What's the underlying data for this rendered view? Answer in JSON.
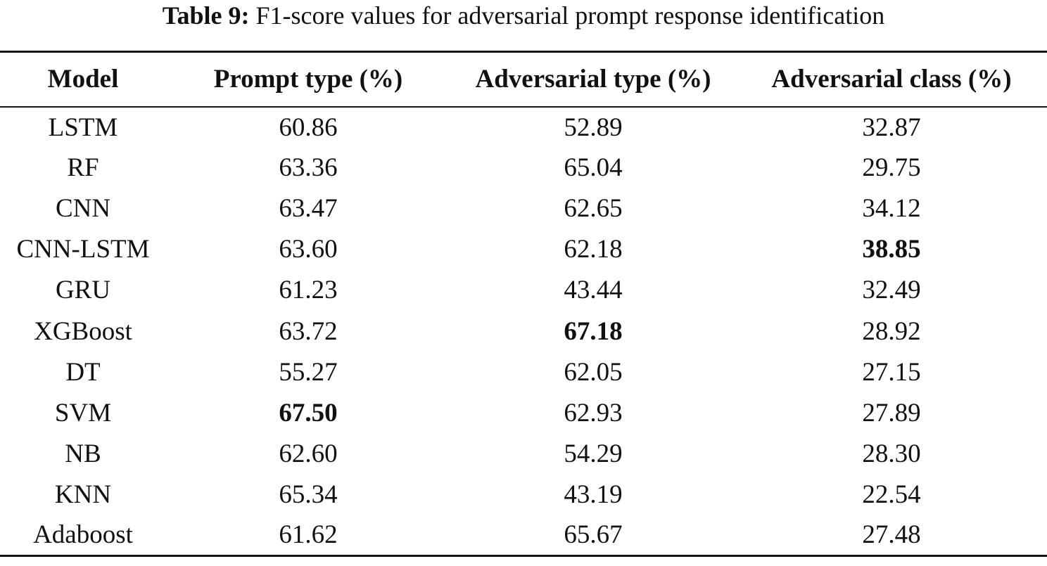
{
  "caption": {
    "label": "Table 9:",
    "text": "F1-score values for adversarial prompt response identification"
  },
  "table": {
    "headers": [
      "Model",
      "Prompt type (%)",
      "Adversarial type (%)",
      "Adversarial class (%)"
    ],
    "rows": [
      {
        "model": "LSTM",
        "prompt_type": "60.86",
        "adversarial_type": "52.89",
        "adversarial_class": "32.87",
        "bold": []
      },
      {
        "model": "RF",
        "prompt_type": "63.36",
        "adversarial_type": "65.04",
        "adversarial_class": "29.75",
        "bold": []
      },
      {
        "model": "CNN",
        "prompt_type": "63.47",
        "adversarial_type": "62.65",
        "adversarial_class": "34.12",
        "bold": []
      },
      {
        "model": "CNN-LSTM",
        "prompt_type": "63.60",
        "adversarial_type": "62.18",
        "adversarial_class": "38.85",
        "bold": [
          "adversarial_class"
        ]
      },
      {
        "model": "GRU",
        "prompt_type": "61.23",
        "adversarial_type": "43.44",
        "adversarial_class": "32.49",
        "bold": []
      },
      {
        "model": "XGBoost",
        "prompt_type": "63.72",
        "adversarial_type": "67.18",
        "adversarial_class": "28.92",
        "bold": [
          "adversarial_type"
        ]
      },
      {
        "model": "DT",
        "prompt_type": "55.27",
        "adversarial_type": "62.05",
        "adversarial_class": "27.15",
        "bold": []
      },
      {
        "model": "SVM",
        "prompt_type": "67.50",
        "adversarial_type": "62.93",
        "adversarial_class": "27.89",
        "bold": [
          "prompt_type"
        ]
      },
      {
        "model": "NB",
        "prompt_type": "62.60",
        "adversarial_type": "54.29",
        "adversarial_class": "28.30",
        "bold": []
      },
      {
        "model": "KNN",
        "prompt_type": "65.34",
        "adversarial_type": "43.19",
        "adversarial_class": "22.54",
        "bold": []
      },
      {
        "model": "Adaboost",
        "prompt_type": "61.62",
        "adversarial_type": "65.67",
        "adversarial_class": "27.48",
        "bold": []
      }
    ]
  }
}
